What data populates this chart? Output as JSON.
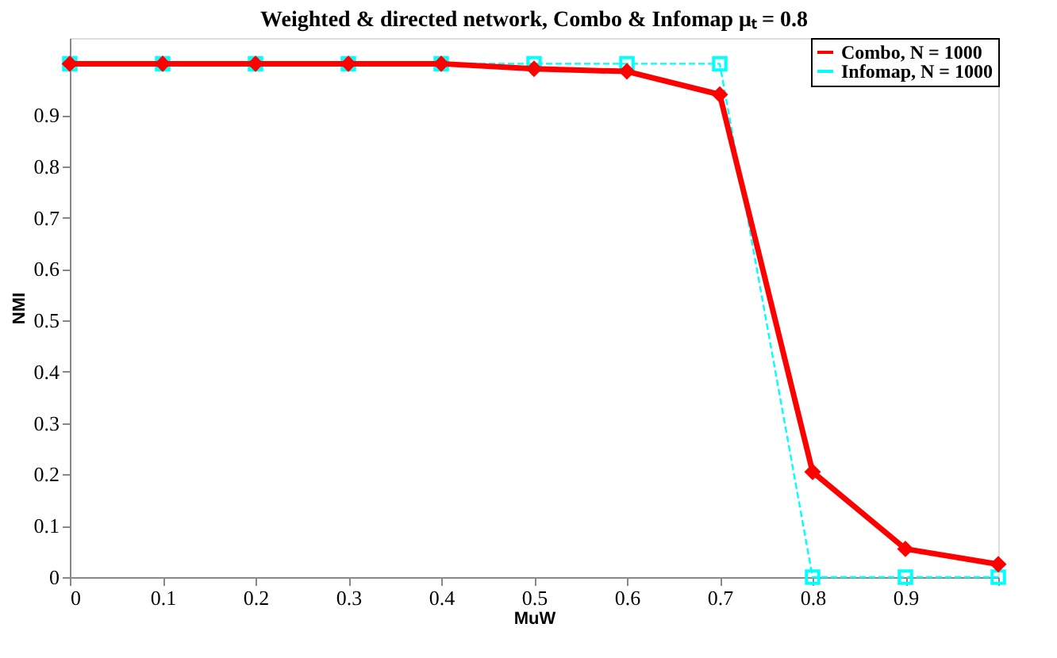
{
  "chart_data": {
    "type": "line",
    "title": "Weighted & directed network, Combo & Infomap μₜ = 0.8",
    "xlabel": "MuW",
    "ylabel": "NMI",
    "x": [
      0,
      0.1,
      0.2,
      0.3,
      0.4,
      0.5,
      0.6,
      0.7,
      0.8,
      0.9,
      1.0
    ],
    "series": [
      {
        "name": "Combo, N = 1000",
        "color": "#ff0000",
        "marker": "diamond",
        "line_style": "solid",
        "values": [
          1,
          1,
          1,
          1,
          1,
          0.99,
          0.985,
          0.94,
          0.205,
          0.055,
          0.025
        ]
      },
      {
        "name": "Infomap, N = 1000",
        "color": "#00ffff",
        "marker": "square",
        "line_style": "dashed",
        "values": [
          1,
          1,
          1,
          1,
          1,
          1,
          1,
          1,
          0,
          0,
          0
        ]
      }
    ],
    "xlim": [
      0,
      1
    ],
    "ylim": [
      0,
      1.05
    ],
    "xticks": [
      0,
      0.1,
      0.2,
      0.3,
      0.4,
      0.5,
      0.6,
      0.7,
      0.8,
      0.9,
      {
        "value": 1,
        "label": null
      }
    ],
    "yticks": [
      0,
      0.1,
      0.2,
      0.3,
      0.4,
      0.5,
      0.6,
      0.7,
      0.8,
      0.9,
      {
        "value": 1,
        "label": null
      }
    ],
    "grid": false,
    "legend": "top right"
  }
}
